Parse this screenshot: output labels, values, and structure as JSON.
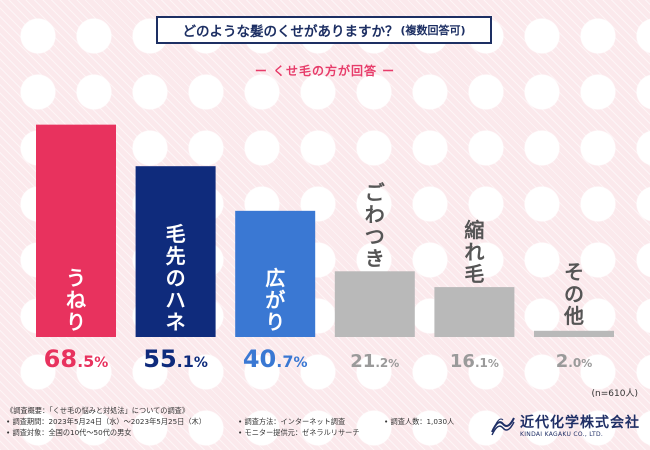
{
  "header": {
    "question": "どのような髪のくせがありますか？",
    "question_note": "(複数回答可)",
    "subtitle": "ー くせ毛の方が回答 ー"
  },
  "chart_data": {
    "type": "bar",
    "title": "どのような髪のくせがありますか？(複数回答可)",
    "subtitle": "くせ毛の方が回答",
    "categories": [
      "うねり",
      "毛先のハネ",
      "広がり",
      "ごわつき",
      "縮れ毛",
      "その他"
    ],
    "values": [
      68.5,
      55.1,
      40.7,
      21.2,
      16.1,
      2.0
    ],
    "value_labels": [
      {
        "int": "68",
        "dec": ".5",
        "unit": "%"
      },
      {
        "int": "55",
        "dec": ".1",
        "unit": "%"
      },
      {
        "int": "40",
        "dec": ".7",
        "unit": "%"
      },
      {
        "int": "21",
        "dec": ".2",
        "unit": "%"
      },
      {
        "int": "16",
        "dec": ".1",
        "unit": "%"
      },
      {
        "int": "2",
        "dec": ".0",
        "unit": "%"
      }
    ],
    "colors": [
      "#e8325e",
      "#0f2b7c",
      "#3a78d3",
      "#b9b9b9",
      "#b9b9b9",
      "#b9b9b9"
    ],
    "label_colors": [
      "#e8325e",
      "#0f2b7c",
      "#3a78d3",
      "#9a9a9a",
      "#9a9a9a",
      "#9a9a9a"
    ],
    "inner_label_colors": [
      "#ffffff",
      "#ffffff",
      "#ffffff",
      "#555555",
      "#555555",
      "#555555"
    ],
    "ylim": [
      0,
      100
    ],
    "xlabel": "",
    "ylabel": "",
    "sample_note": "(n=610人)"
  },
  "footer": {
    "overview": "《調査概要：「くせ毛の悩みと対処法」についての調査》",
    "period": "• 調査期間：2023年5月24日（水）～2023年5月25日（木）",
    "target": "• 調査対象：全国の10代～50代の男女",
    "method": "• 調査方法：インターネット調査",
    "provider": "• モニター提供元：ゼネラルリサーチ",
    "respondents": "• 調査人数：1,030人"
  },
  "logo": {
    "name": "近代化学株式会社",
    "english": "KINDAI KAGAKU CO., LTD."
  }
}
